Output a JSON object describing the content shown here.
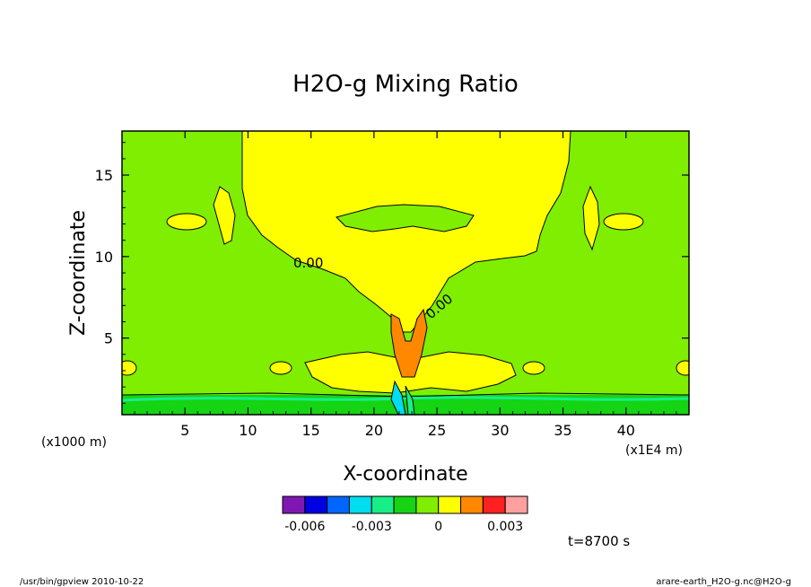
{
  "chart_data": {
    "type": "heatmap",
    "title": "H2O-g Mixing Ratio",
    "xlabel": "X-coordinate",
    "ylabel": "Z-coordinate",
    "x_unit": "(x1E4 m)",
    "y_unit": "(x1000 m)",
    "xlim": [
      0,
      45
    ],
    "ylim": [
      0.3,
      17.7
    ],
    "x_ticks": [
      "5",
      "10",
      "15",
      "20",
      "25",
      "30",
      "35",
      "40"
    ],
    "y_ticks": [
      "5",
      "10",
      "15"
    ],
    "contour_labels": [
      "0.00",
      "0.00"
    ],
    "colorbar": {
      "colors": [
        "#7f18b2",
        "#0000e0",
        "#0066ff",
        "#00ddee",
        "#18ee88",
        "#14d414",
        "#7fee00",
        "#ffff00",
        "#ff8800",
        "#ff2020",
        "#ffa0a0"
      ],
      "tick_labels": [
        "-0.006",
        "-0.003",
        "0",
        "0.003"
      ]
    },
    "time_label": "t=8700 s"
  },
  "footer": {
    "left": "/usr/bin/gpview  2010-10-22",
    "right": "arare-earth_H2O-g.nc@H2O-g"
  }
}
